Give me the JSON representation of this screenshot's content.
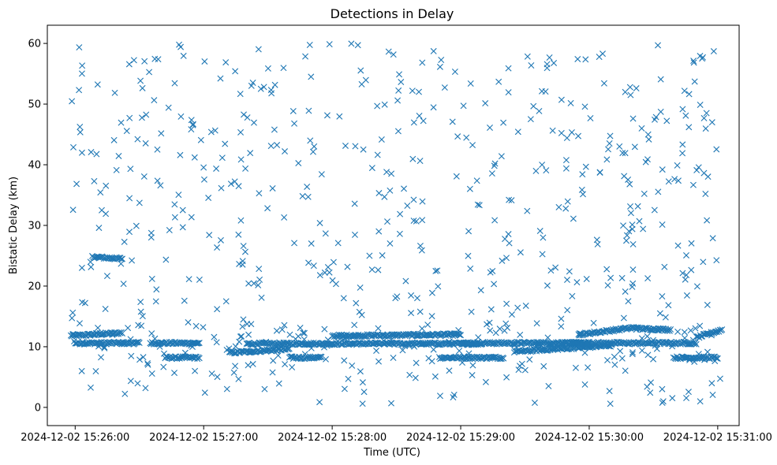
{
  "chart_data": {
    "type": "scatter",
    "title": "Detections in Delay",
    "xlabel": "Time (UTC)",
    "ylabel": "Bistatic Delay (km)",
    "x_unit": "seconds after 2024-12-02 15:26:00",
    "xlim": [
      -13,
      310
    ],
    "ylim": [
      -3,
      63
    ],
    "x_ticks": [
      {
        "value": 0,
        "label": "2024-12-02 15:26:00"
      },
      {
        "value": 60,
        "label": "2024-12-02 15:27:00"
      },
      {
        "value": 120,
        "label": "2024-12-02 15:28:00"
      },
      {
        "value": 180,
        "label": "2024-12-02 15:29:00"
      },
      {
        "value": 240,
        "label": "2024-12-02 15:30:00"
      },
      {
        "value": 300,
        "label": "2024-12-02 15:31:00"
      }
    ],
    "y_ticks": [
      0,
      10,
      20,
      30,
      40,
      50,
      60
    ],
    "marker": "x",
    "color": "#1f77b4",
    "grid": false,
    "legend": "none",
    "tracks": [
      {
        "x_start": -2,
        "x_end": 22,
        "y_start": 11.8,
        "y_end": 12.3
      },
      {
        "x_start": 0,
        "x_end": 30,
        "y_start": 10.6,
        "y_end": 10.6
      },
      {
        "x_start": 8,
        "x_end": 22,
        "y_start": 24.8,
        "y_end": 24.5
      },
      {
        "x_start": 35,
        "x_end": 58,
        "y_start": 10.6,
        "y_end": 10.6
      },
      {
        "x_start": 42,
        "x_end": 58,
        "y_start": 8.2,
        "y_end": 8.2
      },
      {
        "x_start": 72,
        "x_end": 100,
        "y_start": 9.0,
        "y_end": 9.6
      },
      {
        "x_start": 80,
        "x_end": 140,
        "y_start": 10.5,
        "y_end": 10.5
      },
      {
        "x_start": 100,
        "x_end": 115,
        "y_start": 8.2,
        "y_end": 8.2
      },
      {
        "x_start": 120,
        "x_end": 180,
        "y_start": 11.8,
        "y_end": 12.0
      },
      {
        "x_start": 140,
        "x_end": 190,
        "y_start": 10.5,
        "y_end": 10.5
      },
      {
        "x_start": 170,
        "x_end": 200,
        "y_start": 8.2,
        "y_end": 8.2
      },
      {
        "x_start": 180,
        "x_end": 240,
        "y_start": 10.6,
        "y_end": 10.6
      },
      {
        "x_start": 205,
        "x_end": 250,
        "y_start": 9.2,
        "y_end": 10.2
      },
      {
        "x_start": 225,
        "x_end": 290,
        "y_start": 10.6,
        "y_end": 10.6
      },
      {
        "x_start": 235,
        "x_end": 262,
        "y_start": 12.0,
        "y_end": 13.2
      },
      {
        "x_start": 262,
        "x_end": 278,
        "y_start": 13.0,
        "y_end": 12.8
      },
      {
        "x_start": 280,
        "x_end": 300,
        "y_start": 8.2,
        "y_end": 8.2
      },
      {
        "x_start": 290,
        "x_end": 302,
        "y_start": 11.5,
        "y_end": 12.8
      }
    ],
    "clutter": {
      "count": 700,
      "x_range": [
        -2,
        302
      ],
      "y_range": [
        0.5,
        60
      ]
    }
  }
}
